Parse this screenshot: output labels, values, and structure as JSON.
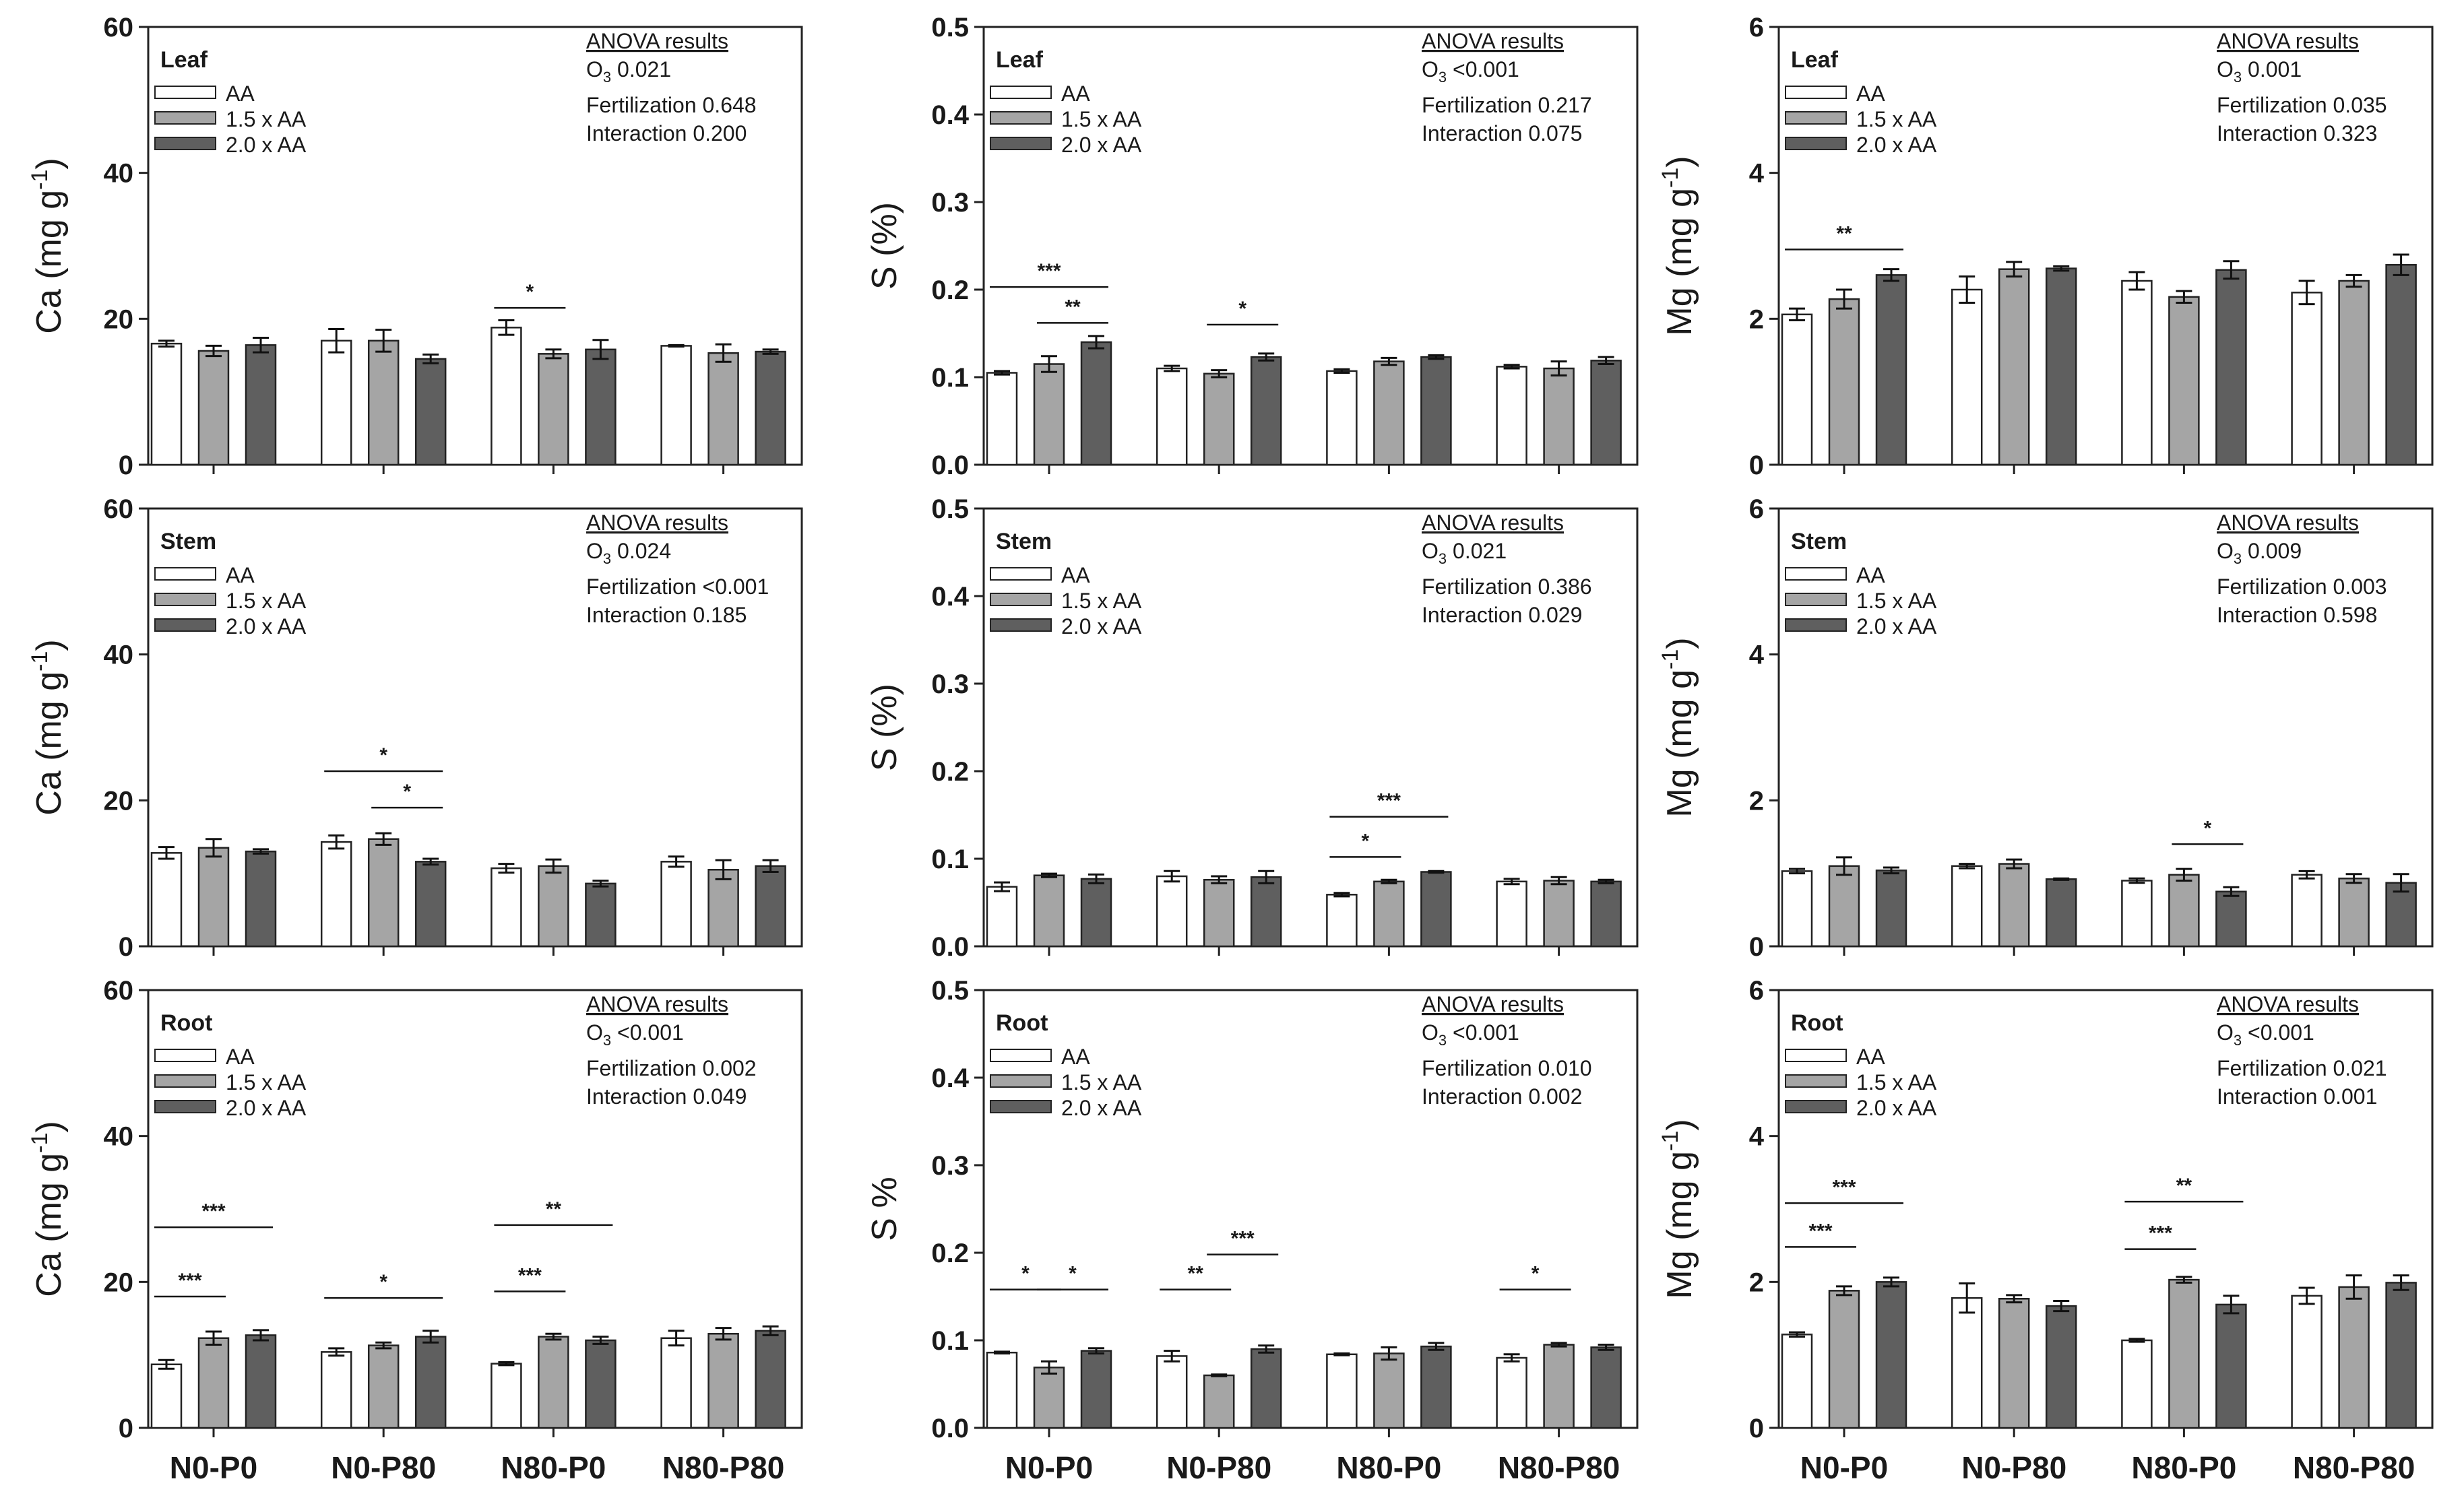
{
  "colors": {
    "AA": "#ffffff",
    "AA15": "#a5a5a5",
    "AA20": "#5f5f5f",
    "axis": "#222222"
  },
  "legend": [
    "AA",
    "1.5 x AA",
    "2.0 x AA"
  ],
  "chart_data": [
    {
      "id": "leaf-ca",
      "type": "bar",
      "panel_label": "Leaf",
      "ylabel": "Ca (mg g",
      "ylabel_sup": "-1",
      "ylabel_tail": ")",
      "ylim": [
        0,
        60
      ],
      "yticks": [
        0,
        20,
        40,
        60
      ],
      "ytick_labels": [
        "0",
        "20",
        "40",
        "60"
      ],
      "show_xlabels": false,
      "categories": [
        "N0-P0",
        "N0-P80",
        "N80-P0",
        "N80-P80"
      ],
      "series": [
        {
          "name": "AA",
          "values": [
            16.6,
            17.0,
            18.8,
            16.3
          ],
          "errors": [
            0.4,
            1.6,
            1.0,
            0.1
          ]
        },
        {
          "name": "1.5 x AA",
          "values": [
            15.6,
            17.0,
            15.2,
            15.3
          ],
          "errors": [
            0.7,
            1.5,
            0.6,
            1.2
          ]
        },
        {
          "name": "2.0 x AA",
          "values": [
            16.4,
            14.5,
            15.8,
            15.5
          ],
          "errors": [
            1.0,
            0.6,
            1.3,
            0.3
          ]
        }
      ],
      "anova": {
        "title": "ANOVA results",
        "o3": "O",
        "o3_sub": "3",
        "o3_value": " 0.021",
        "lines": [
          "Fertilization 0.648",
          "Interaction 0.200"
        ]
      },
      "sig": [
        {
          "cat": 2,
          "from": 0,
          "to": 1,
          "y": 21.5,
          "label": "*"
        }
      ]
    },
    {
      "id": "leaf-s",
      "type": "bar",
      "panel_label": "Leaf",
      "ylabel": "S (%)",
      "ylabel_sup": "",
      "ylabel_tail": "",
      "ylim": [
        0,
        0.5
      ],
      "yticks": [
        0,
        0.1,
        0.2,
        0.3,
        0.4,
        0.5
      ],
      "ytick_labels": [
        "0.0",
        "0.1",
        "0.2",
        "0.3",
        "0.4",
        "0.5"
      ],
      "show_xlabels": false,
      "categories": [
        "N0-P0",
        "N0-P80",
        "N80-P0",
        "N80-P80"
      ],
      "series": [
        {
          "name": "AA",
          "values": [
            0.105,
            0.11,
            0.107,
            0.112
          ],
          "errors": [
            0.002,
            0.003,
            0.002,
            0.002
          ]
        },
        {
          "name": "1.5 x AA",
          "values": [
            0.115,
            0.104,
            0.118,
            0.11
          ],
          "errors": [
            0.009,
            0.004,
            0.004,
            0.008
          ]
        },
        {
          "name": "2.0 x AA",
          "values": [
            0.14,
            0.123,
            0.123,
            0.119
          ],
          "errors": [
            0.007,
            0.004,
            0.002,
            0.004
          ]
        }
      ],
      "anova": {
        "title": "ANOVA results",
        "o3": "O",
        "o3_sub": "3",
        "o3_value": " <0.001",
        "lines": [
          "Fertilization 0.217",
          "Interaction 0.075"
        ]
      },
      "sig": [
        {
          "cat": 0,
          "from": 0,
          "to": 2,
          "y": 0.203,
          "label": "***"
        },
        {
          "cat": 0,
          "from": 1,
          "to": 2,
          "y": 0.162,
          "label": "**"
        },
        {
          "cat": 1,
          "from": 1,
          "to": 2,
          "y": 0.16,
          "label": "*"
        }
      ]
    },
    {
      "id": "leaf-mg",
      "type": "bar",
      "panel_label": "Leaf",
      "ylabel": "Mg (mg g",
      "ylabel_sup": "-1",
      "ylabel_tail": ")",
      "ylim": [
        0,
        6
      ],
      "yticks": [
        0,
        2,
        4,
        6
      ],
      "ytick_labels": [
        "0",
        "2",
        "4",
        "6"
      ],
      "show_xlabels": false,
      "categories": [
        "N0-P0",
        "N0-P80",
        "N80-P0",
        "N80-P80"
      ],
      "series": [
        {
          "name": "AA",
          "values": [
            2.06,
            2.4,
            2.52,
            2.36
          ],
          "errors": [
            0.08,
            0.18,
            0.12,
            0.16
          ]
        },
        {
          "name": "1.5 x AA",
          "values": [
            2.27,
            2.68,
            2.3,
            2.52
          ],
          "errors": [
            0.13,
            0.1,
            0.08,
            0.08
          ]
        },
        {
          "name": "2.0 x AA",
          "values": [
            2.6,
            2.69,
            2.67,
            2.74
          ],
          "errors": [
            0.08,
            0.03,
            0.12,
            0.14
          ]
        }
      ],
      "anova": {
        "title": "ANOVA results",
        "o3": "O",
        "o3_sub": "3",
        "o3_value": " 0.001",
        "lines": [
          "Fertilization 0.035",
          "Interaction 0.323"
        ]
      },
      "sig": [
        {
          "cat": 0,
          "from": 0,
          "to": 2,
          "y": 2.95,
          "label": "**"
        }
      ]
    },
    {
      "id": "stem-ca",
      "type": "bar",
      "panel_label": "Stem",
      "ylabel": "Ca (mg g",
      "ylabel_sup": "-1",
      "ylabel_tail": ")",
      "ylim": [
        0,
        60
      ],
      "yticks": [
        0,
        20,
        40,
        60
      ],
      "ytick_labels": [
        "0",
        "20",
        "40",
        "60"
      ],
      "show_xlabels": false,
      "categories": [
        "N0-P0",
        "N0-P80",
        "N80-P0",
        "N80-P80"
      ],
      "series": [
        {
          "name": "AA",
          "values": [
            12.8,
            14.3,
            10.7,
            11.6
          ],
          "errors": [
            0.8,
            0.9,
            0.6,
            0.7
          ]
        },
        {
          "name": "1.5 x AA",
          "values": [
            13.5,
            14.7,
            11.0,
            10.5
          ],
          "errors": [
            1.2,
            0.8,
            0.9,
            1.3
          ]
        },
        {
          "name": "2.0 x AA",
          "values": [
            13.0,
            11.6,
            8.6,
            11.0
          ],
          "errors": [
            0.3,
            0.4,
            0.4,
            0.8
          ]
        }
      ],
      "anova": {
        "title": "ANOVA results",
        "o3": "O",
        "o3_sub": "3",
        "o3_value": " 0.024",
        "lines": [
          "Fertilization <0.001",
          "Interaction 0.185"
        ]
      },
      "sig": [
        {
          "cat": 1,
          "from": 0,
          "to": 2,
          "y": 24.0,
          "label": "*"
        },
        {
          "cat": 1,
          "from": 1,
          "to": 2,
          "y": 19.0,
          "label": "*"
        }
      ]
    },
    {
      "id": "stem-s",
      "type": "bar",
      "panel_label": "Stem",
      "ylabel": "S (%)",
      "ylabel_sup": "",
      "ylabel_tail": "",
      "ylim": [
        0,
        0.5
      ],
      "yticks": [
        0,
        0.1,
        0.2,
        0.3,
        0.4,
        0.5
      ],
      "ytick_labels": [
        "0.0",
        "0.1",
        "0.2",
        "0.3",
        "0.4",
        "0.5"
      ],
      "show_xlabels": false,
      "categories": [
        "N0-P0",
        "N0-P80",
        "N80-P0",
        "N80-P80"
      ],
      "series": [
        {
          "name": "AA",
          "values": [
            0.068,
            0.08,
            0.059,
            0.074
          ],
          "errors": [
            0.005,
            0.006,
            0.002,
            0.003
          ]
        },
        {
          "name": "1.5 x AA",
          "values": [
            0.081,
            0.076,
            0.074,
            0.075
          ],
          "errors": [
            0.002,
            0.004,
            0.002,
            0.004
          ]
        },
        {
          "name": "2.0 x AA",
          "values": [
            0.077,
            0.079,
            0.085,
            0.074
          ],
          "errors": [
            0.005,
            0.007,
            0.001,
            0.002
          ]
        }
      ],
      "anova": {
        "title": "ANOVA results",
        "o3": "O",
        "o3_sub": "3",
        "o3_value": " 0.021",
        "lines": [
          "Fertilization 0.386",
          "Interaction 0.029"
        ]
      },
      "sig": [
        {
          "cat": 2,
          "from": 0,
          "to": 2,
          "y": 0.148,
          "label": "***"
        },
        {
          "cat": 2,
          "from": 0,
          "to": 1,
          "y": 0.102,
          "label": "*"
        }
      ]
    },
    {
      "id": "stem-mg",
      "type": "bar",
      "panel_label": "Stem",
      "ylabel": "Mg (mg g",
      "ylabel_sup": "-1",
      "ylabel_tail": ")",
      "ylim": [
        0,
        6
      ],
      "yticks": [
        0,
        2,
        4,
        6
      ],
      "ytick_labels": [
        "0",
        "2",
        "4",
        "6"
      ],
      "show_xlabels": false,
      "categories": [
        "N0-P0",
        "N0-P80",
        "N80-P0",
        "N80-P80"
      ],
      "series": [
        {
          "name": "AA",
          "values": [
            1.03,
            1.1,
            0.9,
            0.98
          ],
          "errors": [
            0.03,
            0.03,
            0.03,
            0.05
          ]
        },
        {
          "name": "1.5 x AA",
          "values": [
            1.1,
            1.13,
            0.98,
            0.93
          ],
          "errors": [
            0.12,
            0.06,
            0.08,
            0.06
          ]
        },
        {
          "name": "2.0 x AA",
          "values": [
            1.04,
            0.92,
            0.75,
            0.87
          ],
          "errors": [
            0.04,
            0.01,
            0.06,
            0.12
          ]
        }
      ],
      "anova": {
        "title": "ANOVA results",
        "o3": "O",
        "o3_sub": "3",
        "o3_value": " 0.009",
        "lines": [
          "Fertilization 0.003",
          "Interaction 0.598"
        ]
      },
      "sig": [
        {
          "cat": 2,
          "from": 1,
          "to": 2,
          "y": 1.4,
          "label": "*"
        }
      ]
    },
    {
      "id": "root-ca",
      "type": "bar",
      "panel_label": "Root",
      "ylabel": "Ca (mg g",
      "ylabel_sup": "-1",
      "ylabel_tail": ")",
      "ylim": [
        0,
        60
      ],
      "yticks": [
        0,
        20,
        40,
        60
      ],
      "ytick_labels": [
        "0",
        "20",
        "40",
        "60"
      ],
      "show_xlabels": true,
      "categories": [
        "N0-P0",
        "N0-P80",
        "N80-P0",
        "N80-P80"
      ],
      "series": [
        {
          "name": "AA",
          "values": [
            8.7,
            10.4,
            8.8,
            12.3
          ],
          "errors": [
            0.6,
            0.5,
            0.2,
            1.0
          ]
        },
        {
          "name": "1.5 x AA",
          "values": [
            12.3,
            11.3,
            12.5,
            12.9
          ],
          "errors": [
            0.9,
            0.4,
            0.4,
            0.8
          ]
        },
        {
          "name": "2.0 x AA",
          "values": [
            12.7,
            12.5,
            12.0,
            13.3
          ],
          "errors": [
            0.7,
            0.8,
            0.5,
            0.6
          ]
        }
      ],
      "anova": {
        "title": "ANOVA results",
        "o3": "O",
        "o3_sub": "3",
        "o3_value": " <0.001",
        "lines": [
          "Fertilization 0.002",
          "Interaction 0.049"
        ]
      },
      "sig": [
        {
          "cat": 0,
          "from": 0,
          "to": 2,
          "y": 27.5,
          "label": "***"
        },
        {
          "cat": 0,
          "from": 0,
          "to": 1,
          "y": 18.0,
          "label": "***"
        },
        {
          "cat": 1,
          "from": 0,
          "to": 2,
          "y": 17.8,
          "label": "*"
        },
        {
          "cat": 2,
          "from": 0,
          "to": 2,
          "y": 27.8,
          "label": "**"
        },
        {
          "cat": 2,
          "from": 0,
          "to": 1,
          "y": 18.7,
          "label": "***"
        }
      ]
    },
    {
      "id": "root-s",
      "type": "bar",
      "panel_label": "Root",
      "ylabel": "S %",
      "ylabel_sup": "",
      "ylabel_tail": "",
      "ylim": [
        0,
        0.5
      ],
      "yticks": [
        0,
        0.1,
        0.2,
        0.3,
        0.4,
        0.5
      ],
      "ytick_labels": [
        "0.0",
        "0.1",
        "0.2",
        "0.3",
        "0.4",
        "0.5"
      ],
      "show_xlabels": true,
      "categories": [
        "N0-P0",
        "N0-P80",
        "N80-P0",
        "N80-P80"
      ],
      "series": [
        {
          "name": "AA",
          "values": [
            0.086,
            0.082,
            0.084,
            0.08
          ],
          "errors": [
            0.001,
            0.006,
            0.001,
            0.004
          ]
        },
        {
          "name": "1.5 x AA",
          "values": [
            0.069,
            0.06,
            0.085,
            0.095
          ],
          "errors": [
            0.007,
            0.001,
            0.007,
            0.002
          ]
        },
        {
          "name": "2.0 x AA",
          "values": [
            0.088,
            0.09,
            0.093,
            0.092
          ],
          "errors": [
            0.003,
            0.004,
            0.004,
            0.003
          ]
        }
      ],
      "anova": {
        "title": "ANOVA results",
        "o3": "O",
        "o3_sub": "3",
        "o3_value": " <0.001",
        "lines": [
          "Fertilization 0.010",
          "Interaction 0.002"
        ]
      },
      "sig": [
        {
          "cat": 0,
          "from": 0,
          "to": 1,
          "y": 0.158,
          "label": "*"
        },
        {
          "cat": 0,
          "from": 1,
          "to": 2,
          "y": 0.158,
          "label": "*"
        },
        {
          "cat": 1,
          "from": 0,
          "to": 1,
          "y": 0.158,
          "label": "**"
        },
        {
          "cat": 1,
          "from": 1,
          "to": 2,
          "y": 0.198,
          "label": "***"
        },
        {
          "cat": 3,
          "from": 0,
          "to": 1,
          "y": 0.158,
          "label": "*"
        }
      ]
    },
    {
      "id": "root-mg",
      "type": "bar",
      "panel_label": "Root",
      "ylabel": "Mg (mg g",
      "ylabel_sup": "-1",
      "ylabel_tail": ")",
      "ylim": [
        0,
        6
      ],
      "yticks": [
        0,
        2,
        4,
        6
      ],
      "ytick_labels": [
        "0",
        "2",
        "4",
        "6"
      ],
      "show_xlabels": true,
      "categories": [
        "N0-P0",
        "N0-P80",
        "N80-P0",
        "N80-P80"
      ],
      "series": [
        {
          "name": "AA",
          "values": [
            1.28,
            1.78,
            1.2,
            1.81
          ],
          "errors": [
            0.03,
            0.2,
            0.02,
            0.11
          ]
        },
        {
          "name": "1.5 x AA",
          "values": [
            1.88,
            1.77,
            2.03,
            1.93
          ],
          "errors": [
            0.06,
            0.05,
            0.04,
            0.16
          ]
        },
        {
          "name": "2.0 x AA",
          "values": [
            2.0,
            1.67,
            1.69,
            1.99
          ],
          "errors": [
            0.06,
            0.07,
            0.12,
            0.1
          ]
        }
      ],
      "anova": {
        "title": "ANOVA results",
        "o3": "O",
        "o3_sub": "3",
        "o3_value": " <0.001",
        "lines": [
          "Fertilization 0.021",
          "Interaction 0.001"
        ]
      },
      "sig": [
        {
          "cat": 0,
          "from": 0,
          "to": 2,
          "y": 3.08,
          "label": "***"
        },
        {
          "cat": 0,
          "from": 0,
          "to": 1,
          "y": 2.48,
          "label": "***"
        },
        {
          "cat": 2,
          "from": 0,
          "to": 2,
          "y": 3.1,
          "label": "**"
        },
        {
          "cat": 2,
          "from": 0,
          "to": 1,
          "y": 2.45,
          "label": "***"
        }
      ]
    }
  ]
}
